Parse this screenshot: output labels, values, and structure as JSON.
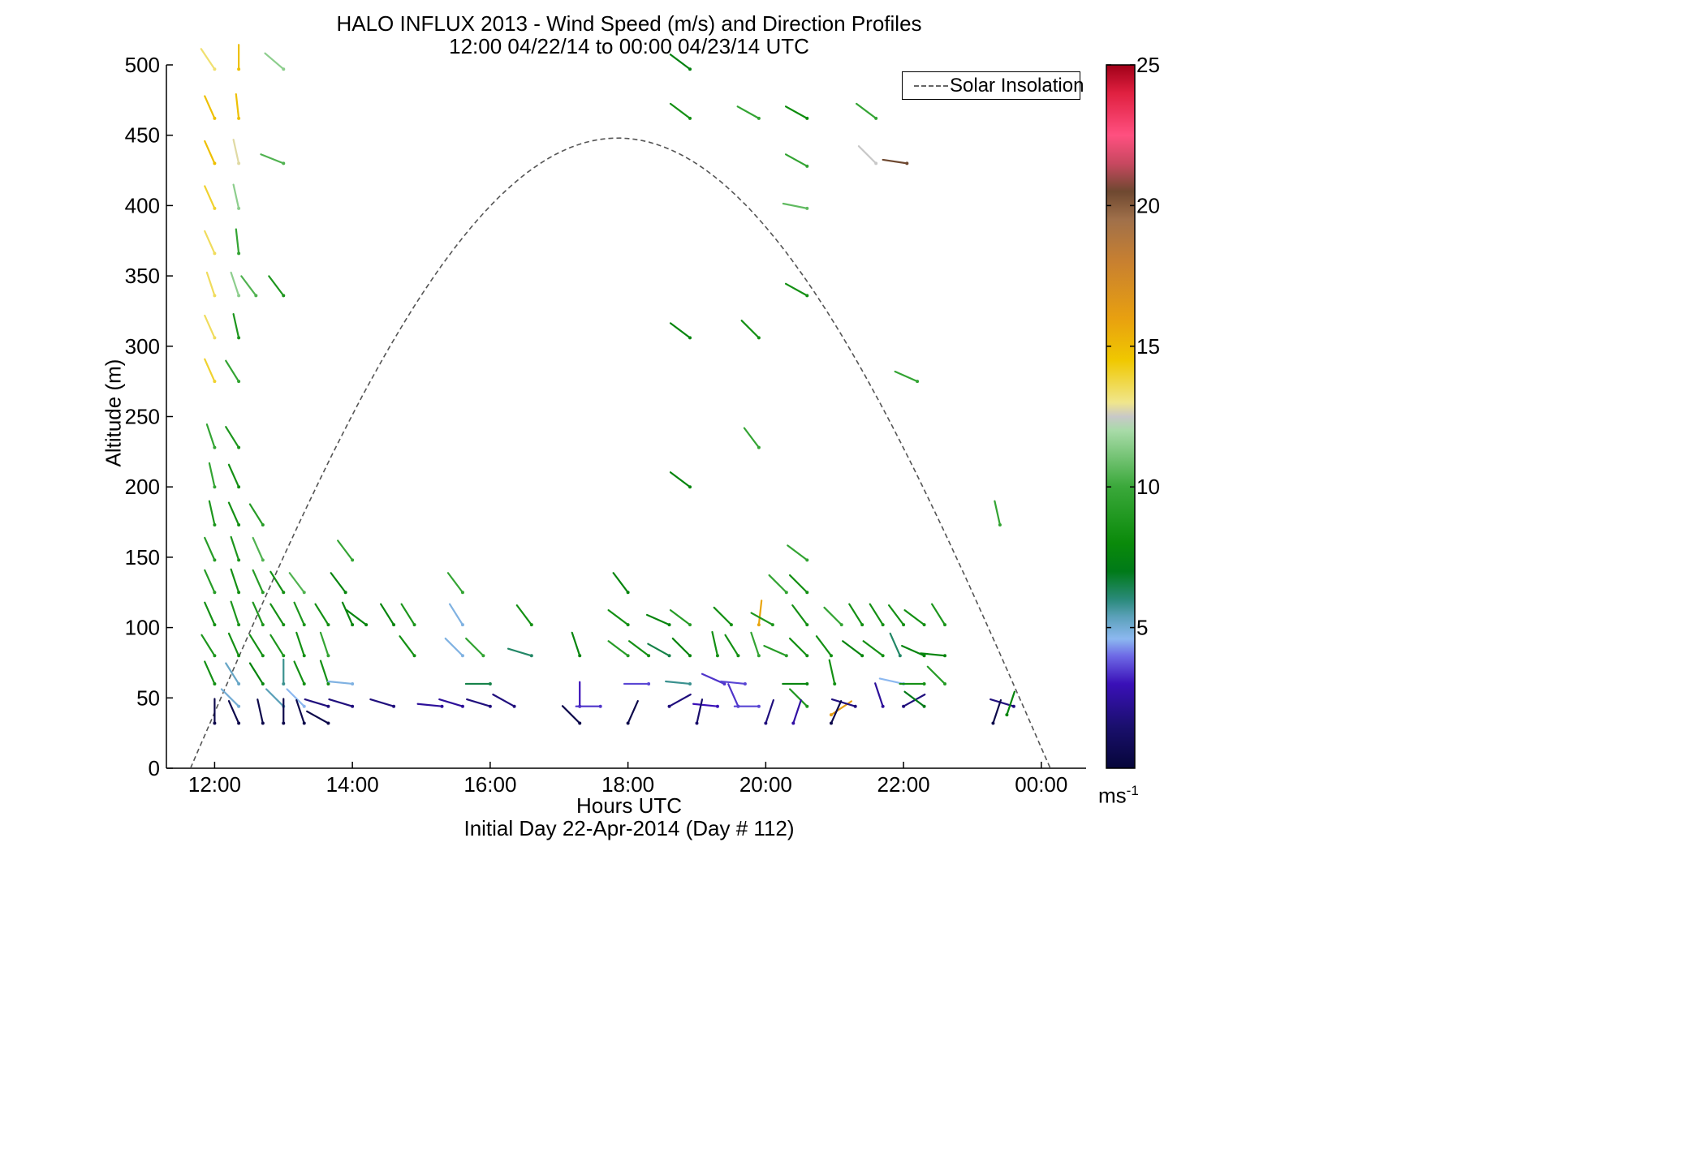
{
  "title": {
    "line1": "HALO INFLUX 2013 - Wind Speed (m/s) and Direction Profiles",
    "line2": "12:00 04/22/14 to 00:00 04/23/14  UTC"
  },
  "axes": {
    "xlabel": "Hours UTC",
    "xlabel2": "Initial Day 22-Apr-2014 (Day # 112)",
    "ylabel": "Altitude (m)",
    "xlim": [
      11.3,
      24.65
    ],
    "ylim": [
      0,
      500
    ],
    "xticks": [
      {
        "v": 12,
        "label": "12:00"
      },
      {
        "v": 14,
        "label": "14:00"
      },
      {
        "v": 16,
        "label": "16:00"
      },
      {
        "v": 18,
        "label": "18:00"
      },
      {
        "v": 20,
        "label": "20:00"
      },
      {
        "v": 22,
        "label": "22:00"
      },
      {
        "v": 24,
        "label": "00:00"
      }
    ],
    "yticks": [
      {
        "v": 0,
        "label": "0"
      },
      {
        "v": 50,
        "label": "50"
      },
      {
        "v": 100,
        "label": "100"
      },
      {
        "v": 150,
        "label": "150"
      },
      {
        "v": 200,
        "label": "200"
      },
      {
        "v": 250,
        "label": "250"
      },
      {
        "v": 300,
        "label": "300"
      },
      {
        "v": 350,
        "label": "350"
      },
      {
        "v": 400,
        "label": "400"
      },
      {
        "v": 450,
        "label": "450"
      },
      {
        "v": 500,
        "label": "500"
      }
    ]
  },
  "legend": {
    "label": "Solar Insolation",
    "placement": "top-right"
  },
  "colorbar": {
    "min": 0,
    "max": 25,
    "ticks": [
      {
        "v": 5,
        "label": "5"
      },
      {
        "v": 10,
        "label": "10"
      },
      {
        "v": 15,
        "label": "15"
      },
      {
        "v": 20,
        "label": "20"
      },
      {
        "v": 25,
        "label": "25"
      }
    ],
    "unit_base": "ms",
    "unit_exp": "-1",
    "colormap": [
      [
        0,
        "#06063a"
      ],
      [
        1.5,
        "#1a0f6e"
      ],
      [
        3,
        "#3a10b8"
      ],
      [
        4,
        "#6e6ae6"
      ],
      [
        4.6,
        "#8cb8f0"
      ],
      [
        5.4,
        "#5aa0b8"
      ],
      [
        6,
        "#2a8a7a"
      ],
      [
        7,
        "#007a18"
      ],
      [
        8,
        "#0a8a0a"
      ],
      [
        10,
        "#3aa83a"
      ],
      [
        12,
        "#a8dba8"
      ],
      [
        12.5,
        "#c8c8c8"
      ],
      [
        13,
        "#f0e68c"
      ],
      [
        14.5,
        "#f0c800"
      ],
      [
        16,
        "#e8a010"
      ],
      [
        18,
        "#c88030"
      ],
      [
        19.5,
        "#a0704a"
      ],
      [
        20.5,
        "#6e4830"
      ],
      [
        21.5,
        "#c84860"
      ],
      [
        22.5,
        "#ff5080"
      ],
      [
        24,
        "#e02040"
      ],
      [
        25,
        "#a00018"
      ]
    ]
  },
  "chart_data": {
    "type": "barb-profile",
    "title": "HALO INFLUX 2013 - Wind Speed (m/s) and Direction Profiles",
    "subtitle": "12:00 04/22/14 to 00:00 04/23/14  UTC",
    "xlabel": "Hours UTC",
    "ylabel": "Altitude (m)",
    "grid": false,
    "solar_insolation_curve": {
      "name": "Solar Insolation",
      "x_start": 11.65,
      "x_end": 24.13,
      "x_peak": 17.85,
      "peak_altitude": 448
    },
    "vectors": [
      [
        12.0,
        497,
        -0.4,
        0.6,
        13.3
      ],
      [
        12.35,
        497,
        0,
        0.8,
        14.8
      ],
      [
        13.0,
        497,
        -0.7,
        0.6,
        11.5
      ],
      [
        18.9,
        497,
        -0.8,
        0.6,
        7.5
      ],
      [
        12.0,
        462,
        -0.4,
        0.9,
        14.8
      ],
      [
        12.35,
        462,
        -0.1,
        0.9,
        14.8
      ],
      [
        18.9,
        462,
        -0.8,
        0.6,
        8.4
      ],
      [
        19.9,
        462,
        -0.9,
        0.5,
        9.7
      ],
      [
        20.6,
        462,
        -0.9,
        0.5,
        8.1
      ],
      [
        21.6,
        462,
        -0.8,
        0.6,
        9.7
      ],
      [
        12.0,
        430,
        -0.4,
        0.9,
        14.8
      ],
      [
        12.35,
        430,
        -0.2,
        0.9,
        12.8
      ],
      [
        13.0,
        430,
        -1.0,
        0.4,
        10.4
      ],
      [
        20.6,
        428,
        -0.9,
        0.5,
        9.7
      ],
      [
        21.6,
        430,
        -0.7,
        0.7,
        12.5
      ],
      [
        22.05,
        430,
        -1.0,
        0.15,
        20.5
      ],
      [
        12.0,
        398,
        -0.4,
        0.9,
        14.0
      ],
      [
        12.35,
        398,
        -0.2,
        0.9,
        11.5
      ],
      [
        20.6,
        398,
        -1.0,
        0.2,
        10.7
      ],
      [
        12.0,
        366,
        -0.4,
        0.9,
        13.5
      ],
      [
        12.35,
        366,
        -0.1,
        0.9,
        9.7
      ],
      [
        12.0,
        336,
        -0.3,
        0.9,
        13.5
      ],
      [
        12.35,
        336,
        -0.3,
        0.9,
        11.5
      ],
      [
        12.6,
        336,
        -0.6,
        0.8,
        10.4
      ],
      [
        13.0,
        336,
        -0.6,
        0.8,
        8.8
      ],
      [
        20.6,
        336,
        -0.9,
        0.5,
        8.4
      ],
      [
        12.0,
        306,
        -0.4,
        0.9,
        13.5
      ],
      [
        12.35,
        306,
        -0.2,
        0.9,
        8.8
      ],
      [
        18.9,
        306,
        -0.8,
        0.6,
        7.7
      ],
      [
        19.9,
        306,
        -0.7,
        0.7,
        8.4
      ],
      [
        12.0,
        275,
        -0.4,
        0.9,
        14.0
      ],
      [
        12.35,
        275,
        -0.5,
        0.8,
        9.7
      ],
      [
        22.2,
        275,
        -0.9,
        0.4,
        9.7
      ],
      [
        12.0,
        228,
        -0.3,
        0.9,
        9.7
      ],
      [
        12.35,
        228,
        -0.5,
        0.8,
        8.8
      ],
      [
        19.9,
        228,
        -0.6,
        0.8,
        9.7
      ],
      [
        12.0,
        200,
        -0.2,
        0.9,
        9.7
      ],
      [
        12.35,
        200,
        -0.4,
        0.9,
        8.4
      ],
      [
        18.9,
        200,
        -0.8,
        0.6,
        7.7
      ],
      [
        12.0,
        173,
        -0.2,
        0.9,
        8.8
      ],
      [
        12.35,
        173,
        -0.4,
        0.9,
        8.4
      ],
      [
        12.7,
        173,
        -0.5,
        0.8,
        9.2
      ],
      [
        23.4,
        173,
        -0.2,
        0.9,
        9.7
      ],
      [
        12.0,
        148,
        -0.4,
        0.9,
        9.2
      ],
      [
        12.35,
        148,
        -0.3,
        0.9,
        8.8
      ],
      [
        12.7,
        148,
        -0.4,
        0.9,
        10.4
      ],
      [
        14.0,
        148,
        -0.6,
        0.8,
        9.7
      ],
      [
        20.6,
        148,
        -0.8,
        0.6,
        9.7
      ],
      [
        12.0,
        125,
        -0.4,
        0.9,
        9.2
      ],
      [
        12.35,
        125,
        -0.3,
        0.9,
        8.4
      ],
      [
        12.7,
        125,
        -0.4,
        0.9,
        9.2
      ],
      [
        13.0,
        125,
        -0.5,
        0.8,
        8.4
      ],
      [
        13.3,
        125,
        -0.6,
        0.8,
        10.4
      ],
      [
        13.9,
        125,
        -0.6,
        0.8,
        7.7
      ],
      [
        15.6,
        125,
        -0.6,
        0.8,
        9.7
      ],
      [
        18.0,
        125,
        -0.6,
        0.8,
        7.7
      ],
      [
        20.3,
        125,
        -0.7,
        0.7,
        9.7
      ],
      [
        20.6,
        125,
        -0.7,
        0.7,
        8.4
      ],
      [
        12.0,
        102,
        -0.4,
        0.9,
        8.4
      ],
      [
        12.35,
        102,
        -0.3,
        0.9,
        8.8
      ],
      [
        12.7,
        102,
        -0.4,
        0.9,
        8.8
      ],
      [
        13.0,
        102,
        -0.5,
        0.8,
        8.4
      ],
      [
        13.3,
        102,
        -0.4,
        0.9,
        8.8
      ],
      [
        13.65,
        102,
        -0.5,
        0.8,
        8.4
      ],
      [
        14.0,
        102,
        -0.4,
        0.9,
        7.7
      ],
      [
        14.2,
        102,
        -0.8,
        0.6,
        7.7
      ],
      [
        14.6,
        102,
        -0.5,
        0.8,
        7.7
      ],
      [
        14.9,
        102,
        -0.5,
        0.8,
        8.8
      ],
      [
        15.6,
        102,
        -0.5,
        0.8,
        4.8
      ],
      [
        16.6,
        102,
        -0.6,
        0.8,
        8.4
      ],
      [
        18.0,
        102,
        -0.8,
        0.6,
        8.4
      ],
      [
        18.6,
        102,
        -0.9,
        0.4,
        7.7
      ],
      [
        18.9,
        102,
        -0.8,
        0.6,
        9.2
      ],
      [
        19.5,
        102,
        -0.7,
        0.7,
        8.4
      ],
      [
        19.9,
        102,
        0.1,
        0.9,
        15.8
      ],
      [
        20.1,
        102,
        -0.9,
        0.5,
        8.8
      ],
      [
        20.6,
        102,
        -0.6,
        0.8,
        8.4
      ],
      [
        21.1,
        102,
        -0.7,
        0.7,
        9.7
      ],
      [
        21.4,
        102,
        -0.5,
        0.8,
        8.4
      ],
      [
        21.7,
        102,
        -0.5,
        0.8,
        8.4
      ],
      [
        22.0,
        102,
        -0.6,
        0.8,
        8.4
      ],
      [
        22.3,
        102,
        -0.8,
        0.6,
        8.4
      ],
      [
        22.6,
        102,
        -0.5,
        0.8,
        8.8
      ],
      [
        12.0,
        80,
        -0.5,
        0.8,
        8.8
      ],
      [
        12.35,
        80,
        -0.4,
        0.9,
        8.4
      ],
      [
        12.7,
        80,
        -0.5,
        0.8,
        8.4
      ],
      [
        13.0,
        80,
        -0.5,
        0.8,
        8.8
      ],
      [
        13.3,
        80,
        -0.3,
        0.9,
        8.4
      ],
      [
        13.65,
        80,
        -0.3,
        0.9,
        9.7
      ],
      [
        14.9,
        80,
        -0.6,
        0.8,
        8.4
      ],
      [
        15.6,
        80,
        -0.7,
        0.7,
        4.8
      ],
      [
        15.9,
        80,
        -0.7,
        0.7,
        9.7
      ],
      [
        16.6,
        80,
        -1.0,
        0.3,
        6.2
      ],
      [
        17.3,
        80,
        -0.3,
        0.9,
        7.7
      ],
      [
        18.0,
        80,
        -0.8,
        0.6,
        9.2
      ],
      [
        18.3,
        80,
        -0.8,
        0.6,
        8.4
      ],
      [
        18.6,
        80,
        -0.9,
        0.5,
        6.5
      ],
      [
        18.9,
        80,
        -0.7,
        0.7,
        7.7
      ],
      [
        19.3,
        80,
        -0.2,
        0.9,
        8.4
      ],
      [
        19.6,
        80,
        -0.5,
        0.8,
        8.4
      ],
      [
        19.9,
        80,
        -0.3,
        0.9,
        9.7
      ],
      [
        20.3,
        80,
        -0.9,
        0.4,
        9.2
      ],
      [
        20.6,
        80,
        -0.7,
        0.7,
        8.4
      ],
      [
        20.95,
        80,
        -0.6,
        0.8,
        8.4
      ],
      [
        21.4,
        80,
        -0.8,
        0.6,
        7.7
      ],
      [
        21.7,
        80,
        -0.8,
        0.6,
        8.4
      ],
      [
        21.95,
        80,
        -0.4,
        0.9,
        6.2
      ],
      [
        22.3,
        80,
        -0.9,
        0.4,
        7.7
      ],
      [
        22.6,
        80,
        -1.0,
        0.1,
        7.7
      ],
      [
        12.0,
        60,
        -0.4,
        0.9,
        8.4
      ],
      [
        12.35,
        60,
        -0.5,
        0.8,
        5.2
      ],
      [
        12.7,
        60,
        -0.5,
        0.8,
        7.7
      ],
      [
        13.0,
        60,
        0,
        0.9,
        5.8
      ],
      [
        13.3,
        60,
        -0.4,
        0.9,
        8.4
      ],
      [
        13.65,
        60,
        -0.3,
        0.9,
        8.4
      ],
      [
        14.0,
        60,
        -1.0,
        0.1,
        4.8
      ],
      [
        16.0,
        60,
        -1.0,
        0,
        6.5
      ],
      [
        18.3,
        60,
        -1.0,
        0,
        3.6
      ],
      [
        18.9,
        60,
        -1.0,
        0.1,
        5.8
      ],
      [
        19.4,
        60,
        -0.9,
        0.4,
        3.4
      ],
      [
        19.7,
        60,
        -1.0,
        0.1,
        3.6
      ],
      [
        20.6,
        60,
        -1.0,
        0,
        7.7
      ],
      [
        21.0,
        60,
        -0.2,
        0.9,
        8.4
      ],
      [
        22.0,
        60,
        -0.9,
        0.2,
        4.6
      ],
      [
        22.3,
        60,
        -1.0,
        0,
        8.4
      ],
      [
        22.6,
        60,
        -0.7,
        0.7,
        9.2
      ],
      [
        12.35,
        44,
        -0.7,
        0.7,
        5.0
      ],
      [
        13.0,
        44,
        -0.7,
        0.7,
        5.4
      ],
      [
        13.3,
        44,
        -0.7,
        0.7,
        4.6
      ],
      [
        13.65,
        44,
        -1.0,
        0.3,
        1.8
      ],
      [
        14.0,
        44,
        -1.0,
        0.3,
        1.8
      ],
      [
        14.6,
        44,
        -1.0,
        0.3,
        1.8
      ],
      [
        15.3,
        44,
        -1.0,
        0.1,
        2.4
      ],
      [
        15.6,
        44,
        -1.0,
        0.3,
        2.4
      ],
      [
        16.0,
        44,
        -1.0,
        0.3,
        1.8
      ],
      [
        16.35,
        44,
        -0.9,
        0.5,
        1.8
      ],
      [
        17.3,
        44,
        0,
        0.9,
        3.0
      ],
      [
        17.6,
        44,
        -1.0,
        0,
        3.4
      ],
      [
        18.6,
        44,
        0.9,
        0.5,
        1.8
      ],
      [
        19.3,
        44,
        -1.0,
        0.1,
        3.0
      ],
      [
        19.6,
        44,
        -0.4,
        0.9,
        3.4
      ],
      [
        19.9,
        44,
        -1.0,
        0,
        3.6
      ],
      [
        20.6,
        44,
        -0.7,
        0.7,
        8.8
      ],
      [
        20.95,
        38,
        0.9,
        0.6,
        16.2
      ],
      [
        21.3,
        44,
        -1.0,
        0.3,
        1.8
      ],
      [
        21.7,
        44,
        -0.3,
        0.9,
        2.4
      ],
      [
        22.0,
        44,
        0.9,
        0.5,
        1.8
      ],
      [
        22.3,
        44,
        -0.8,
        0.6,
        7.0
      ],
      [
        23.6,
        44,
        -1.0,
        0.3,
        1.8
      ],
      [
        12.0,
        32,
        0,
        0.9,
        0.5
      ],
      [
        12.35,
        32,
        -0.4,
        0.9,
        0.5
      ],
      [
        12.7,
        32,
        -0.2,
        0.9,
        0.5
      ],
      [
        13.0,
        32,
        0,
        0.9,
        0.5
      ],
      [
        13.3,
        32,
        -0.3,
        0.9,
        0.5
      ],
      [
        13.65,
        32,
        -0.9,
        0.5,
        0.5
      ],
      [
        17.3,
        32,
        -0.7,
        0.7,
        0.5
      ],
      [
        18.0,
        32,
        0.4,
        0.9,
        0.5
      ],
      [
        19.0,
        32,
        0.2,
        0.9,
        1.4
      ],
      [
        20.0,
        32,
        0.3,
        0.9,
        1.8
      ],
      [
        20.4,
        32,
        0.3,
        0.9,
        2.6
      ],
      [
        20.95,
        32,
        0.4,
        0.9,
        0.5
      ],
      [
        23.3,
        32,
        0.3,
        0.9,
        0.5
      ],
      [
        23.5,
        38,
        0.3,
        0.9,
        7.7
      ]
    ]
  }
}
